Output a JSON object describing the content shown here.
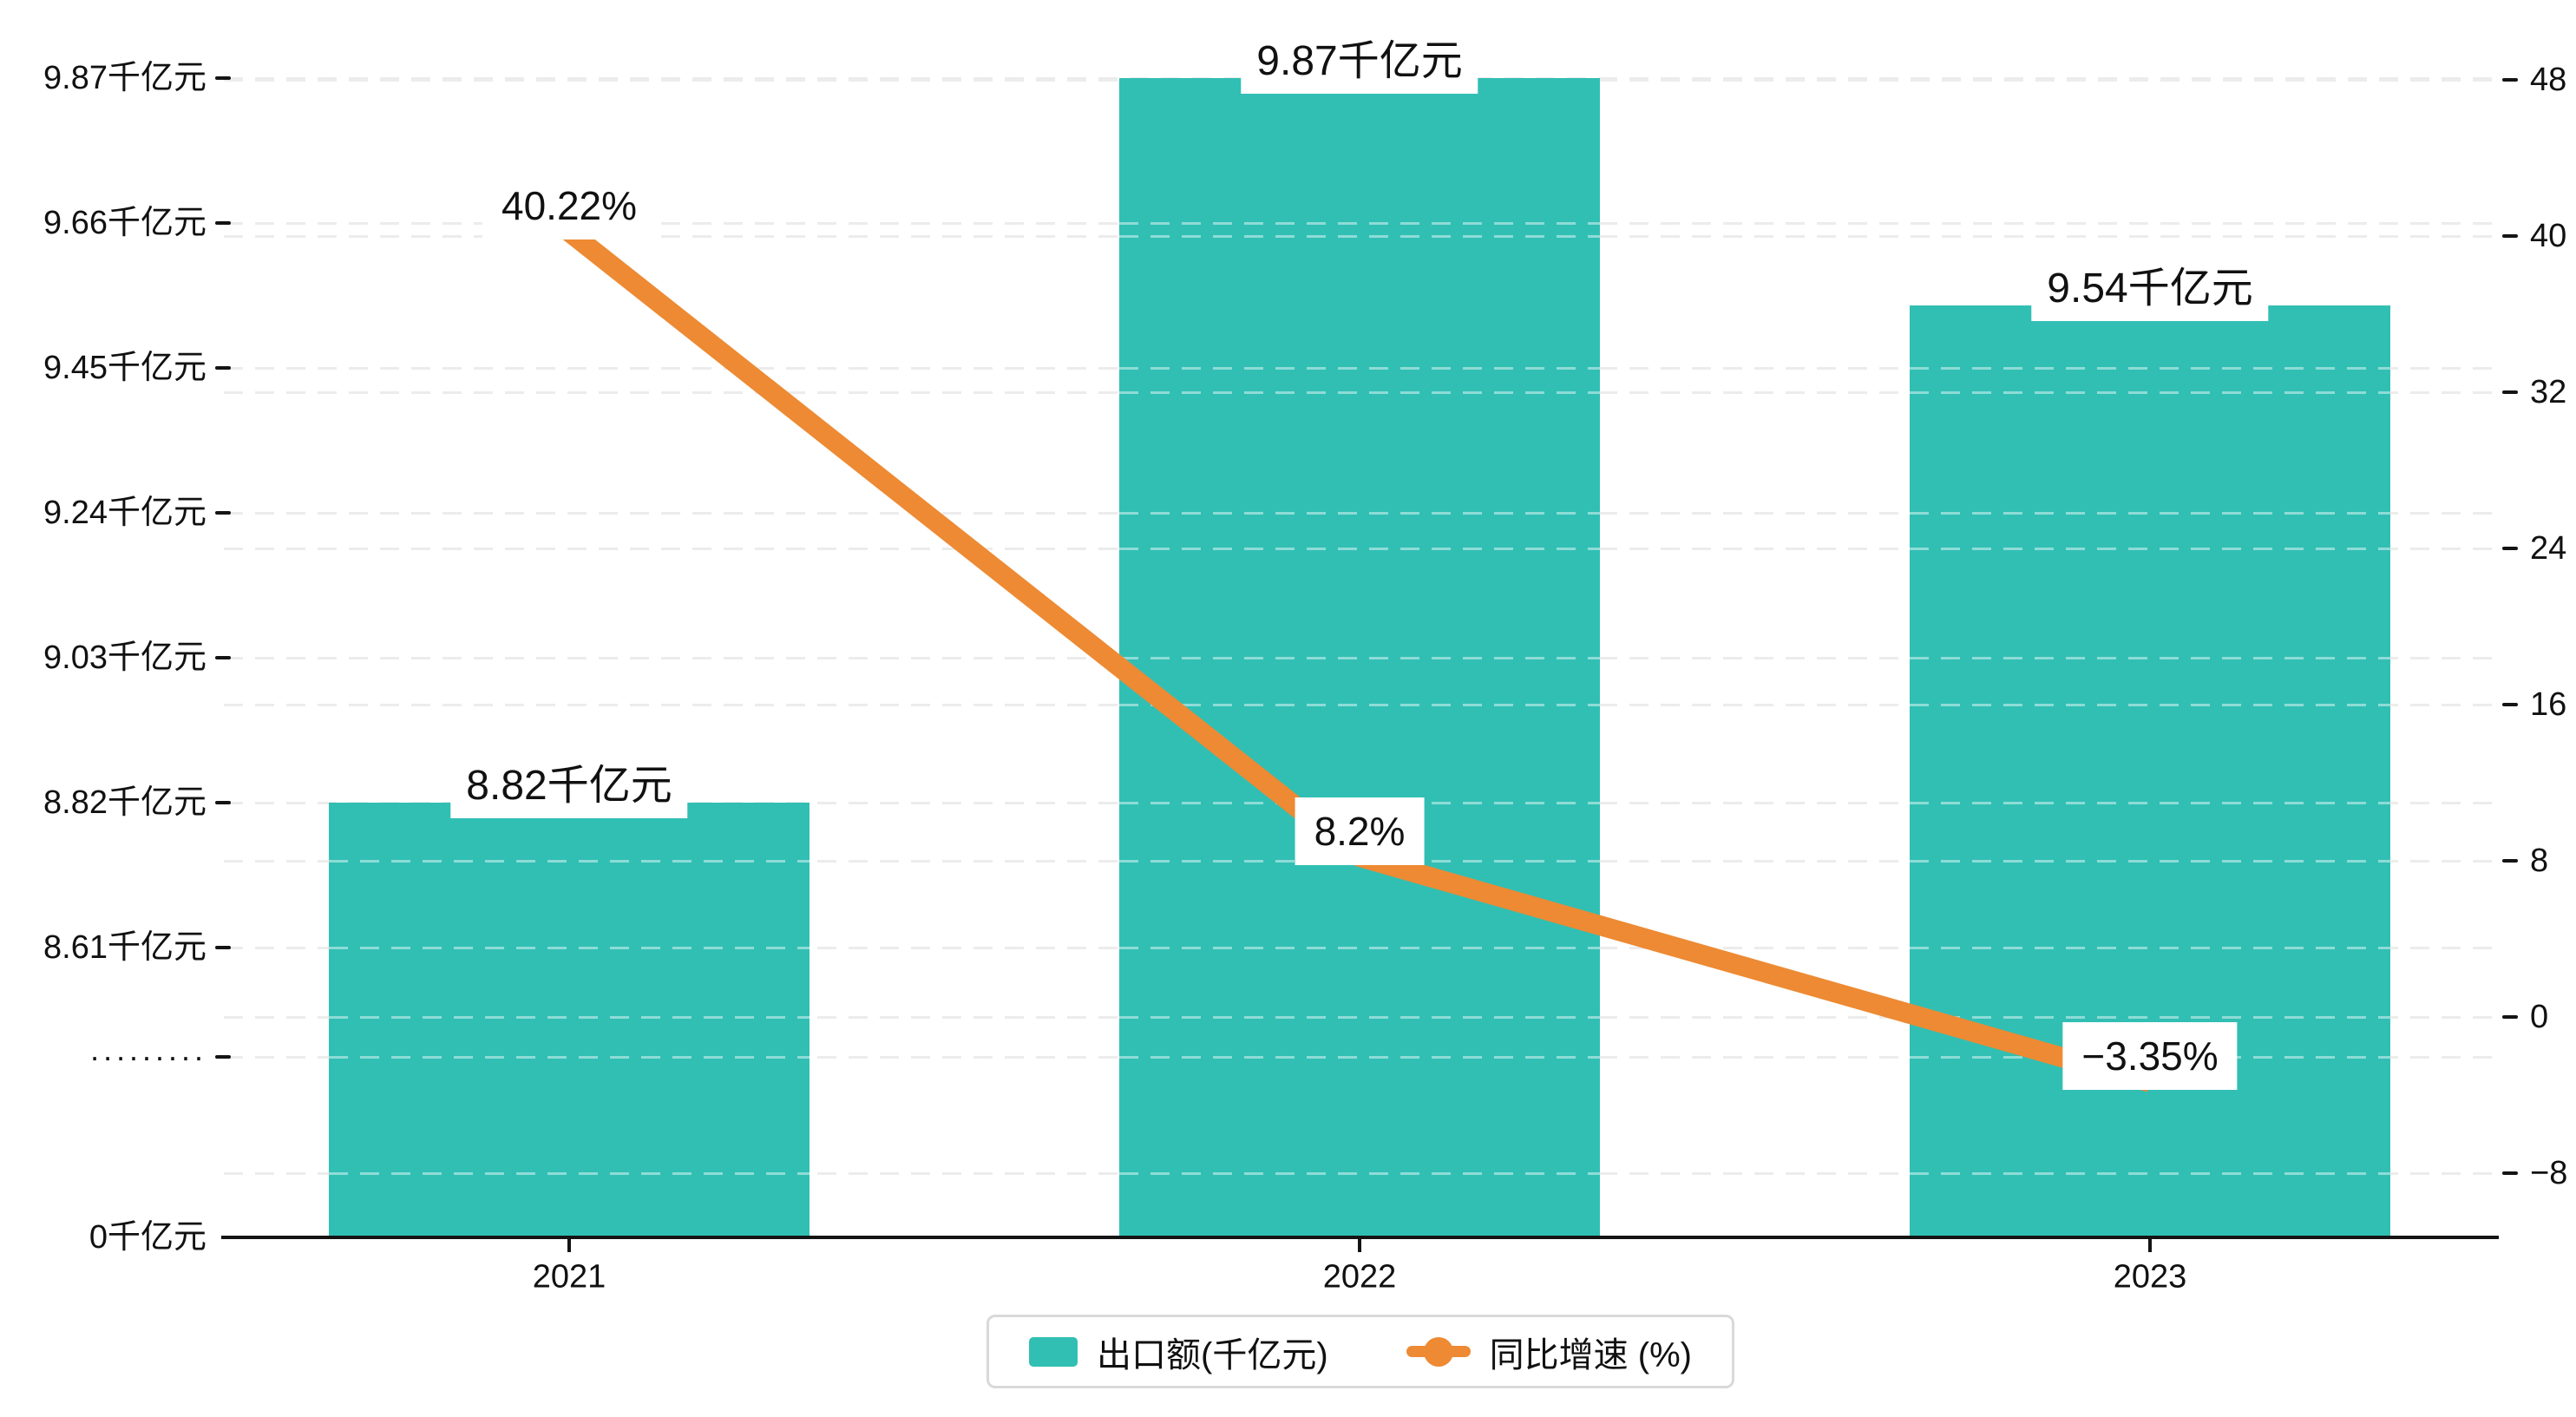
{
  "chart_data": {
    "type": "bar",
    "title": "",
    "categories": [
      "2021",
      "2022",
      "2023"
    ],
    "series": [
      {
        "name": "出口额(千亿元)",
        "type": "bar",
        "y_axis": "left",
        "values": [
          8.82,
          9.87,
          9.54
        ],
        "value_labels": [
          "8.82千亿元",
          "9.87千亿元",
          "9.54千亿元"
        ],
        "color": "#31BFB4"
      },
      {
        "name": "同比增速 (%)",
        "type": "line",
        "y_axis": "right",
        "values": [
          40.22,
          8.2,
          -3.35
        ],
        "value_labels": [
          "40.22%",
          "8.2%",
          "−3.35%"
        ],
        "color": "#ED8A33"
      }
    ],
    "left_axis": {
      "unit": "千亿元",
      "tick_labels": [
        "9.87千亿元",
        "9.66千亿元",
        "9.45千亿元",
        "9.24千亿元",
        "9.03千亿元",
        "8.82千亿元",
        "8.61千亿元"
      ],
      "tick_values": [
        9.87,
        9.66,
        9.45,
        9.24,
        9.03,
        8.82,
        8.61
      ],
      "has_break": true,
      "break_label": "·········",
      "zero_label": "0千亿元"
    },
    "right_axis": {
      "tick_labels": [
        "48",
        "40",
        "32",
        "24",
        "16",
        "8",
        "0",
        "−8"
      ],
      "tick_values": [
        48,
        40,
        32,
        24,
        16,
        8,
        0,
        -8
      ],
      "min": -8,
      "max": 48
    },
    "legend": {
      "position": "bottom",
      "items": [
        {
          "label": "出口额(千亿元)",
          "marker": "rect"
        },
        {
          "label": "同比增速 (%)",
          "marker": "line-dot"
        }
      ]
    },
    "grid": {
      "dashed": true,
      "color": "#ececec"
    },
    "colors": {
      "bar": "#31BFB4",
      "line": "#ED8A33",
      "text": "#111111",
      "axis": "#141414",
      "label_background": "#ffffff",
      "legend_border": "#d9d9d9"
    }
  }
}
